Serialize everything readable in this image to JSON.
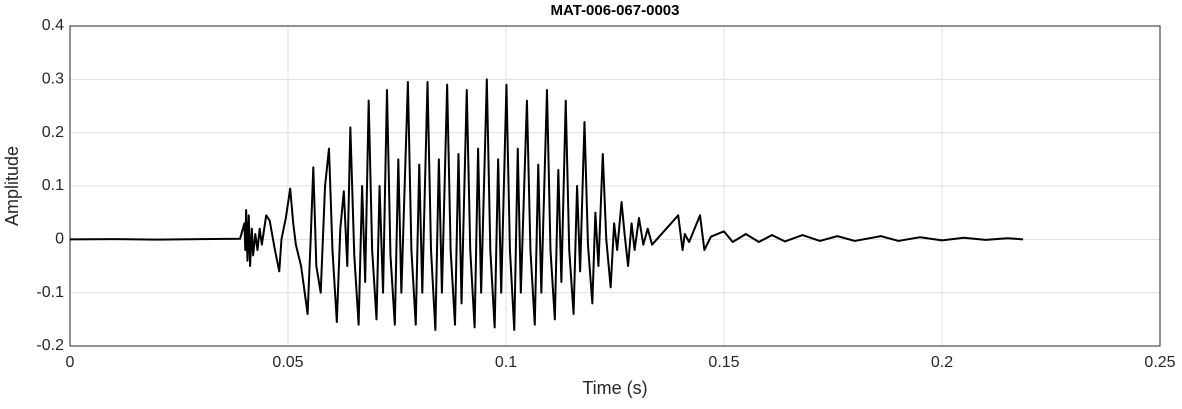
{
  "chart_data": {
    "type": "line",
    "title": "MAT-006-067-0003",
    "x_label": "Time (s)",
    "y_label": "Amplitude",
    "xlim": [
      0,
      0.25
    ],
    "xticks": [
      0,
      0.05,
      0.1,
      0.15,
      0.2,
      0.25
    ],
    "ylim": [
      -0.2,
      0.4
    ],
    "yticks": [
      -0.2,
      -0.1,
      0,
      0.1,
      0.2,
      0.3,
      0.4
    ],
    "grid": true,
    "series": [
      {
        "color": "#000000",
        "x": [
          0,
          0.01,
          0.02,
          0.03,
          0.039,
          0.04,
          0.0402,
          0.0404,
          0.0407,
          0.041,
          0.0413,
          0.0417,
          0.042,
          0.0425,
          0.043,
          0.0435,
          0.044,
          0.045,
          0.0458,
          0.047,
          0.048,
          0.0485,
          0.0495,
          0.0505,
          0.0512,
          0.0518,
          0.053,
          0.0545,
          0.0552,
          0.0558,
          0.0565,
          0.0575,
          0.0585,
          0.0594,
          0.0602,
          0.0612,
          0.062,
          0.0628,
          0.0636,
          0.0643,
          0.0652,
          0.0662,
          0.067,
          0.0677,
          0.0685,
          0.0693,
          0.0703,
          0.071,
          0.0718,
          0.0727,
          0.0735,
          0.0745,
          0.0753,
          0.076,
          0.0775,
          0.0783,
          0.0793,
          0.0801,
          0.0808,
          0.082,
          0.0828,
          0.0838,
          0.0846,
          0.0853,
          0.0865,
          0.0873,
          0.0883,
          0.0891,
          0.0898,
          0.091,
          0.0918,
          0.0928,
          0.0936,
          0.0943,
          0.0956,
          0.0964,
          0.0974,
          0.0982,
          0.0989,
          0.1001,
          0.1009,
          0.1019,
          0.1027,
          0.1034,
          0.1048,
          0.1056,
          0.1066,
          0.1074,
          0.1081,
          0.1094,
          0.1102,
          0.1112,
          0.112,
          0.1127,
          0.1137,
          0.1145,
          0.1155,
          0.1163,
          0.117,
          0.118,
          0.1188,
          0.1198,
          0.1205,
          0.1212,
          0.1222,
          0.123,
          0.124,
          0.1248,
          0.1255,
          0.1265,
          0.1272,
          0.128,
          0.1288,
          0.1295,
          0.1305,
          0.1315,
          0.1325,
          0.1335,
          0.1395,
          0.1405,
          0.141,
          0.142,
          0.1445,
          0.1455,
          0.147,
          0.15,
          0.152,
          0.155,
          0.158,
          0.161,
          0.164,
          0.168,
          0.172,
          0.176,
          0.18,
          0.186,
          0.19,
          0.195,
          0.2,
          0.205,
          0.21,
          0.215,
          0.2186
        ],
        "values": [
          0,
          0.0005,
          -0.0005,
          0.0005,
          0.001,
          0.03,
          -0.02,
          0.055,
          -0.04,
          0.045,
          -0.05,
          0.02,
          -0.03,
          0.01,
          -0.02,
          0.02,
          -0.01,
          0.045,
          0.035,
          -0.02,
          -0.06,
          0,
          0.04,
          0.095,
          0.03,
          -0.01,
          -0.05,
          -0.14,
          0,
          0.135,
          -0.05,
          -0.1,
          0.1,
          0.17,
          -0.02,
          -0.155,
          0.02,
          0.09,
          -0.05,
          0.21,
          -0.03,
          -0.16,
          0.1,
          -0.08,
          0.26,
          -0.02,
          -0.15,
          0.1,
          -0.1,
          0.28,
          -0.03,
          -0.16,
          0.15,
          -0.1,
          0.295,
          -0.02,
          -0.16,
          0.14,
          -0.1,
          0.295,
          -0.02,
          -0.17,
          0.15,
          -0.1,
          0.29,
          -0.02,
          -0.16,
          0.16,
          -0.12,
          0.28,
          -0.02,
          -0.165,
          0.17,
          -0.1,
          0.3,
          -0.02,
          -0.165,
          0.15,
          -0.1,
          0.29,
          -0.02,
          -0.17,
          0.17,
          -0.1,
          0.26,
          -0.02,
          -0.16,
          0.14,
          -0.1,
          0.28,
          -0.02,
          -0.15,
          0.13,
          -0.08,
          0.26,
          -0.02,
          -0.14,
          0.1,
          -0.06,
          0.22,
          -0.01,
          -0.12,
          0.05,
          -0.05,
          0.16,
          0,
          -0.09,
          0.03,
          -0.02,
          0.07,
          0.01,
          -0.05,
          0.03,
          -0.02,
          0.04,
          -0.01,
          0.02,
          -0.01,
          0.045,
          -0.02,
          0.01,
          -0.005,
          0.045,
          -0.02,
          0.005,
          0.015,
          -0.005,
          0.01,
          -0.005,
          0.008,
          -0.004,
          0.008,
          -0.003,
          0.006,
          -0.003,
          0.006,
          -0.003,
          0.004,
          -0.002,
          0.003,
          -0.001,
          0.002,
          0
        ]
      }
    ]
  }
}
